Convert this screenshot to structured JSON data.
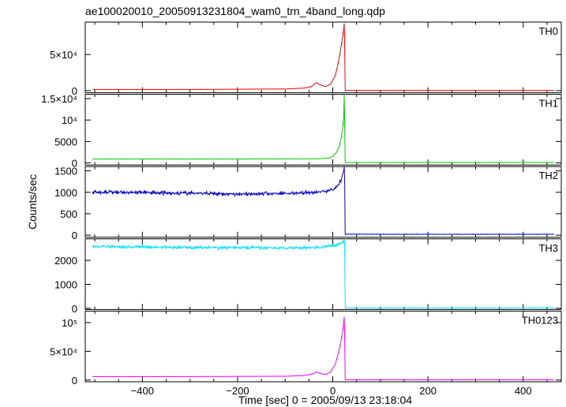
{
  "chart_data": {
    "type": "line",
    "title": "ae100020010_20050913231804_wam0_trn_4band_long.qdp",
    "xlabel": "Time [sec] 0 = 2005/09/13 23:18:04",
    "ylabel": "Counts/sec",
    "xlim": [
      -520,
      480
    ],
    "x_ticks": [
      -400,
      -200,
      0,
      200,
      400
    ],
    "x_tick_labels": [
      "−400",
      "−200",
      "0",
      "200",
      "400"
    ],
    "data_range": [
      -505,
      465
    ],
    "shared_x": true,
    "panels": [
      {
        "name": "TH0",
        "color": "#ff0000",
        "ylim": [
          -3000,
          95000
        ],
        "y_ticks": [
          0,
          50000
        ],
        "y_tick_labels": [
          "0",
          "5×10⁴"
        ],
        "pre_burst_level": 1500,
        "post_burst_level": 300,
        "noise": 150,
        "points": [
          [
            -505,
            1500
          ],
          [
            -300,
            1600
          ],
          [
            -100,
            2200
          ],
          [
            -60,
            3500
          ],
          [
            -45,
            5500
          ],
          [
            -35,
            11000
          ],
          [
            -25,
            7500
          ],
          [
            -15,
            5500
          ],
          [
            -5,
            9000
          ],
          [
            5,
            20000
          ],
          [
            12,
            40000
          ],
          [
            16,
            55000
          ],
          [
            20,
            72000
          ],
          [
            22,
            80000
          ],
          [
            24,
            93000
          ],
          [
            25,
            60000
          ],
          [
            26,
            300
          ],
          [
            465,
            300
          ]
        ]
      },
      {
        "name": "TH1",
        "color": "#00cc00",
        "ylim": [
          -500,
          16000
        ],
        "y_ticks": [
          0,
          5000,
          10000,
          15000
        ],
        "y_tick_labels": [
          "0",
          "5000",
          "10⁴",
          "1.5×10⁴"
        ],
        "pre_burst_level": 900,
        "post_burst_level": 100,
        "noise": 35,
        "points": [
          [
            -505,
            900
          ],
          [
            -200,
            900
          ],
          [
            -30,
            950
          ],
          [
            -10,
            1100
          ],
          [
            0,
            1500
          ],
          [
            8,
            2500
          ],
          [
            14,
            4000
          ],
          [
            18,
            6000
          ],
          [
            21,
            8500
          ],
          [
            23,
            11000
          ],
          [
            24,
            16000
          ],
          [
            25,
            9000
          ],
          [
            26,
            100
          ],
          [
            465,
            100
          ]
        ]
      },
      {
        "name": "TH2",
        "color": "#0000cc",
        "ylim": [
          -50,
          1600
        ],
        "y_ticks": [
          0,
          500,
          1000,
          1500
        ],
        "y_tick_labels": [
          "0",
          "500",
          "1000",
          "1500"
        ],
        "pre_burst_level": 1000,
        "post_burst_level": 20,
        "noise": 38,
        "points": [
          [
            -505,
            1000
          ],
          [
            -400,
            1000
          ],
          [
            -200,
            960
          ],
          [
            -100,
            975
          ],
          [
            -30,
            1000
          ],
          [
            0,
            1060
          ],
          [
            10,
            1150
          ],
          [
            18,
            1300
          ],
          [
            22,
            1450
          ],
          [
            24,
            1600
          ],
          [
            25,
            1200
          ],
          [
            26,
            20
          ],
          [
            465,
            20
          ]
        ]
      },
      {
        "name": "TH3",
        "color": "#00e5ff",
        "ylim": [
          -50,
          2900
        ],
        "y_ticks": [
          0,
          1000,
          2000
        ],
        "y_tick_labels": [
          "0",
          "1000",
          "2000"
        ],
        "pre_burst_level": 2550,
        "post_burst_level": 20,
        "noise": 55,
        "points": [
          [
            -505,
            2580
          ],
          [
            -300,
            2540
          ],
          [
            -100,
            2520
          ],
          [
            -20,
            2550
          ],
          [
            10,
            2650
          ],
          [
            20,
            2750
          ],
          [
            24,
            2850
          ],
          [
            25,
            2600
          ],
          [
            26,
            20
          ],
          [
            465,
            20
          ]
        ]
      },
      {
        "name": "TH0123",
        "color": "#ff00ff",
        "ylim": [
          -3000,
          120000
        ],
        "y_ticks": [
          0,
          50000,
          100000
        ],
        "y_tick_labels": [
          "0",
          "5×10⁴",
          "10⁵"
        ],
        "pre_burst_level": 6000,
        "post_burst_level": 500,
        "noise": 170,
        "points": [
          [
            -505,
            6000
          ],
          [
            -300,
            6100
          ],
          [
            -100,
            6600
          ],
          [
            -60,
            8000
          ],
          [
            -45,
            10000
          ],
          [
            -35,
            14000
          ],
          [
            -25,
            11000
          ],
          [
            -15,
            9500
          ],
          [
            -5,
            14000
          ],
          [
            5,
            27000
          ],
          [
            12,
            48000
          ],
          [
            16,
            63000
          ],
          [
            20,
            82000
          ],
          [
            22,
            92000
          ],
          [
            24,
            110000
          ],
          [
            25,
            70000
          ],
          [
            26,
            500
          ],
          [
            465,
            500
          ]
        ]
      }
    ]
  }
}
